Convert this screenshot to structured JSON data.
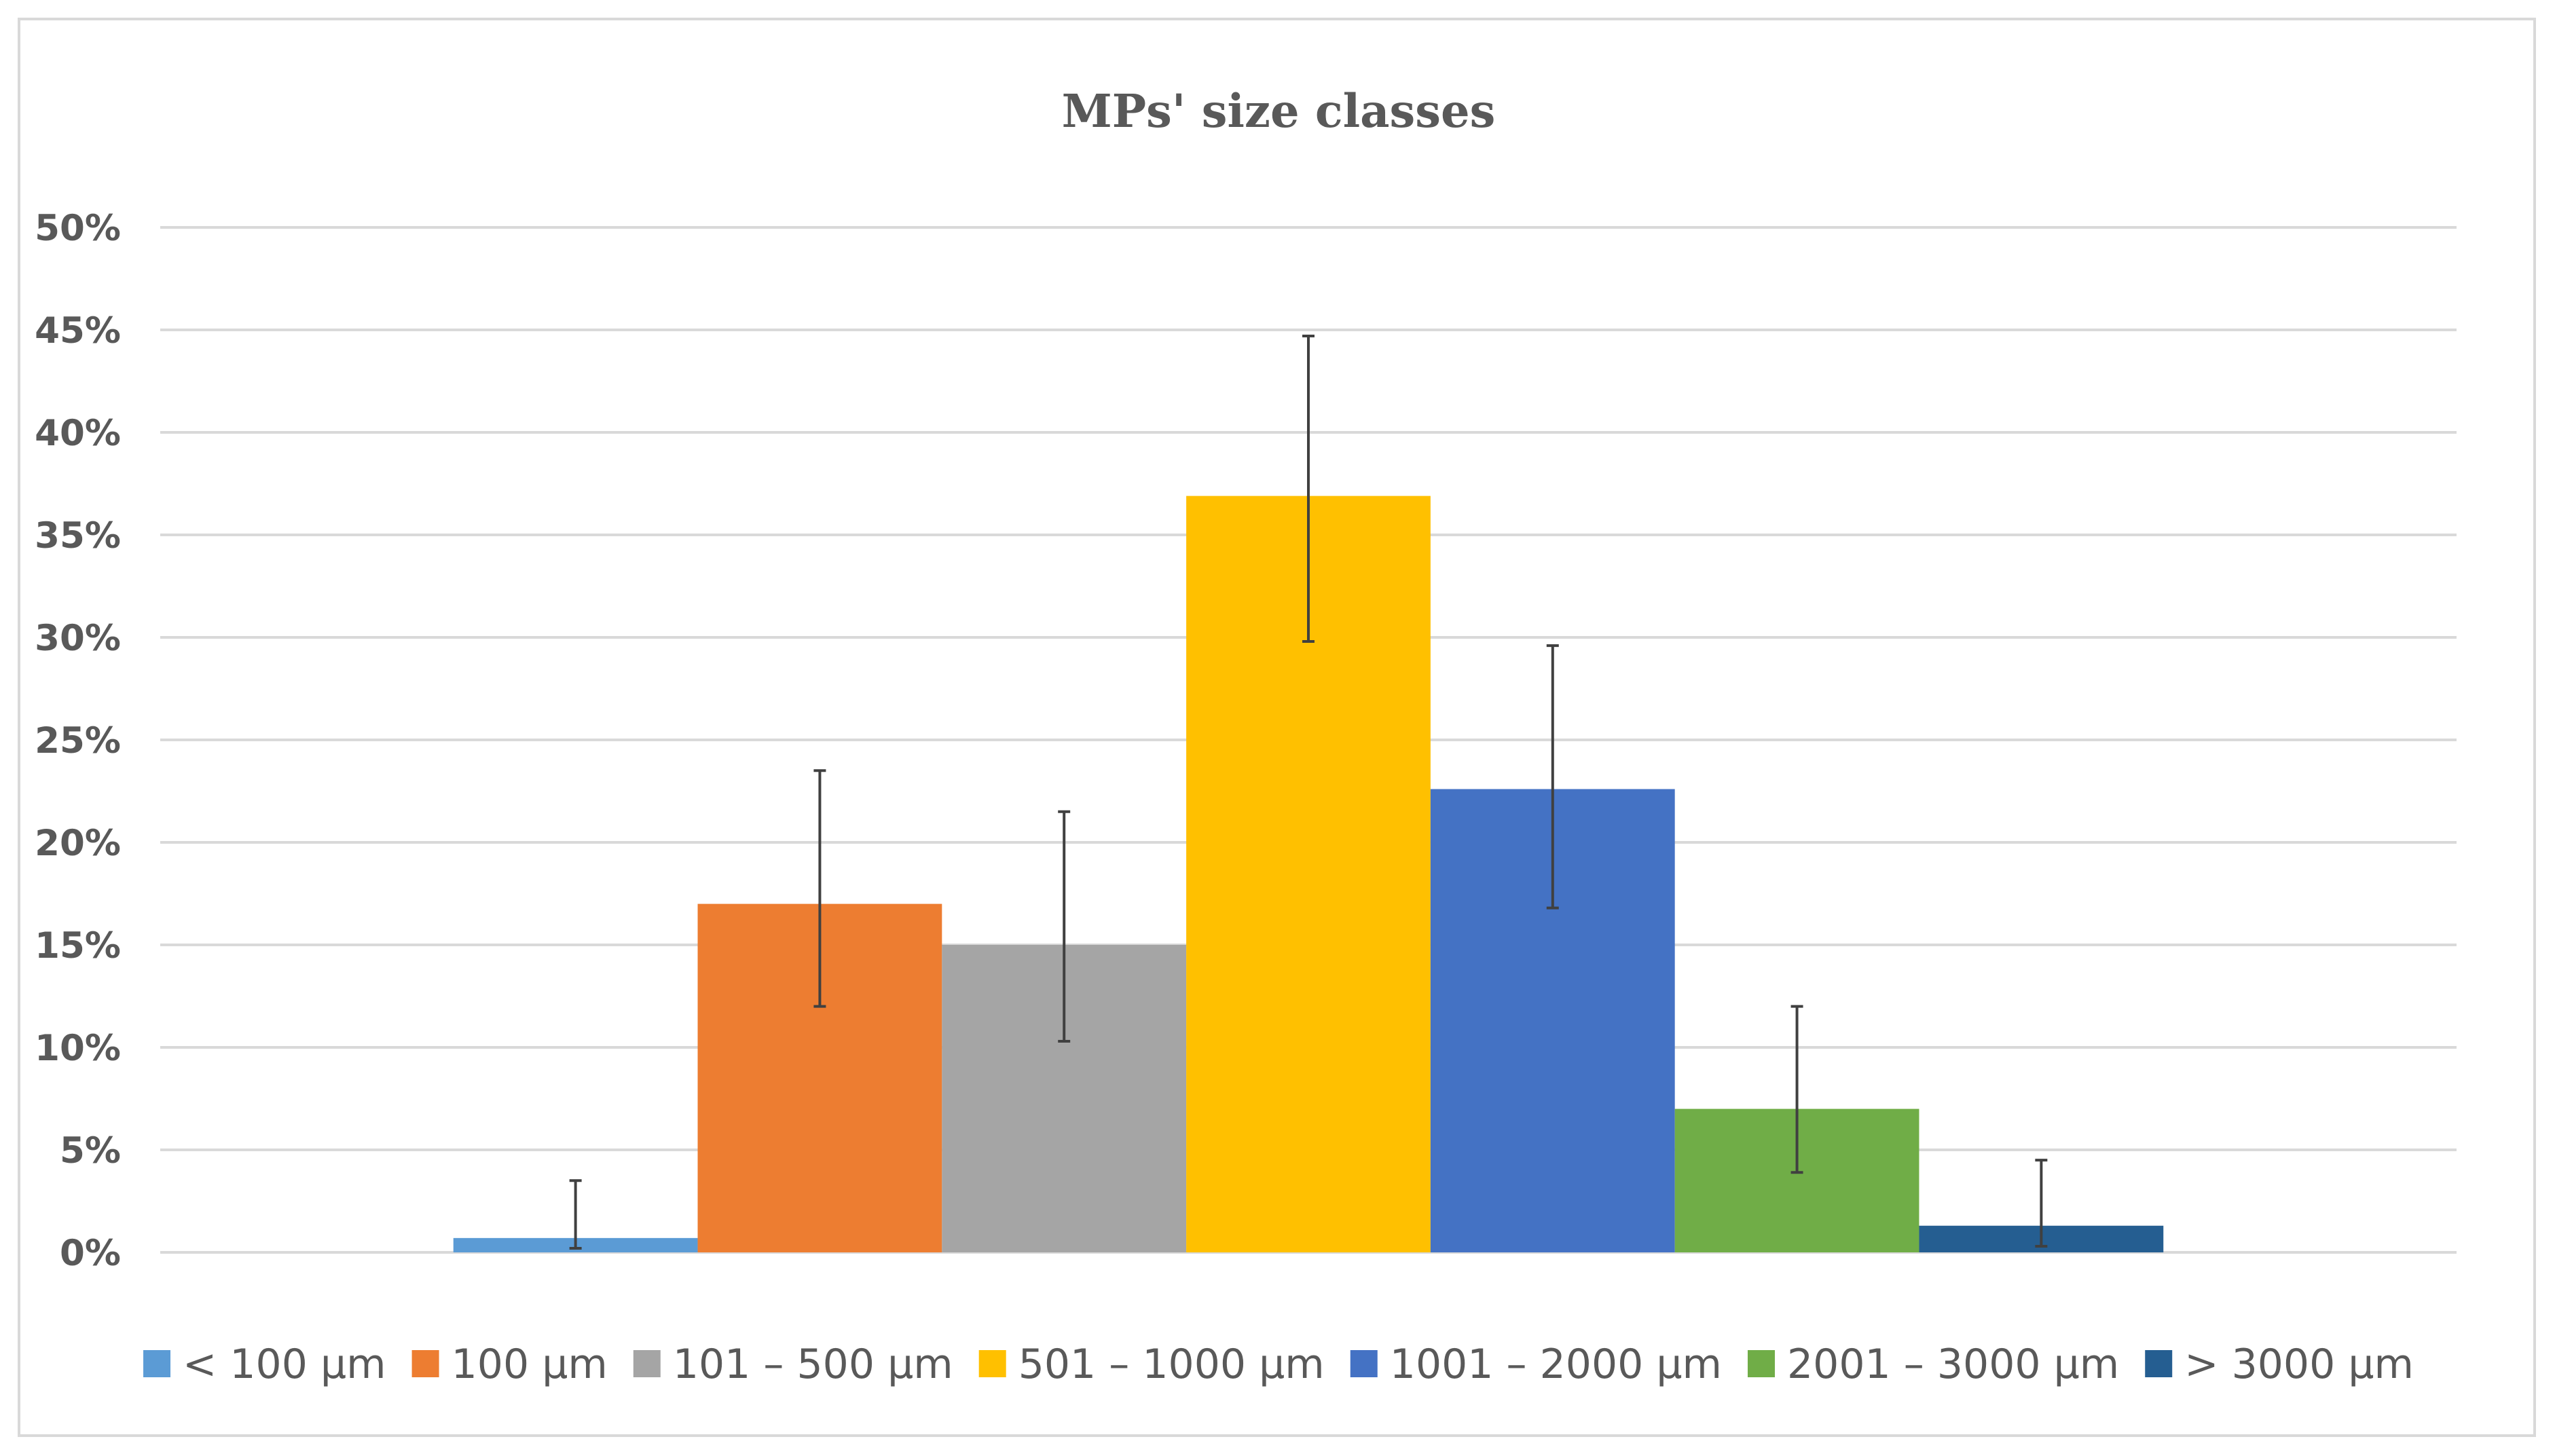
{
  "chart_data": {
    "type": "bar",
    "title": "MPs' size classes",
    "xlabel": "",
    "ylabel": "",
    "ylim": [
      0,
      50
    ],
    "y_ticks": [
      "0%",
      "5%",
      "10%",
      "15%",
      "20%",
      "25%",
      "30%",
      "35%",
      "40%",
      "45%",
      "50%"
    ],
    "y_unit": "%",
    "grid": true,
    "legend_position": "bottom",
    "categories": [
      "< 100 µm",
      "100 µm",
      "101 – 500 µm",
      "501 – 1000 µm",
      "1001 – 2000 µm",
      "2001 – 3000 µm",
      "> 3000 µm"
    ],
    "values": [
      0.7,
      17.0,
      15.0,
      36.9,
      22.6,
      7.0,
      1.3
    ],
    "error_bars": [
      {
        "low": 0.2,
        "high": 3.5
      },
      {
        "low": 12.0,
        "high": 23.5
      },
      {
        "low": 10.3,
        "high": 21.5
      },
      {
        "low": 29.8,
        "high": 44.7
      },
      {
        "low": 16.8,
        "high": 29.6
      },
      {
        "low": 3.9,
        "high": 12.0
      },
      {
        "low": 0.3,
        "high": 4.5
      }
    ],
    "colors": [
      "#5B9BD5",
      "#ED7D31",
      "#A5A5A5",
      "#FFC000",
      "#4472C4",
      "#70AD47",
      "#255E91"
    ]
  }
}
